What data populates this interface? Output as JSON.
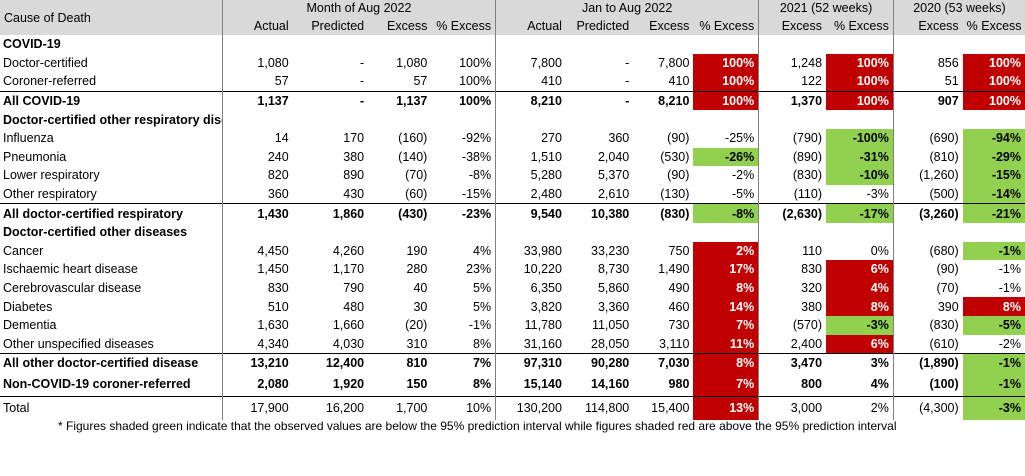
{
  "header": {
    "cause_label": "Cause of Death",
    "groups": [
      "Month of Aug 2022",
      "Jan to Aug 2022",
      "2021 (52 weeks)",
      "2020 (53 weeks)"
    ],
    "columns": [
      "Actual",
      "Predicted",
      "Excess",
      "% Excess",
      "Actual",
      "Predicted",
      "Excess",
      "% Excess",
      "Excess",
      "% Excess",
      "Excess",
      "% Excess"
    ]
  },
  "colors": {
    "red": "#c00000",
    "green": "#92d050",
    "header_bg": "#d9d9d9"
  },
  "rows": [
    {
      "kind": "section",
      "label": "COVID-19"
    },
    {
      "kind": "data",
      "label": "Doctor-certified",
      "cells": [
        "1,080",
        "-",
        "1,080",
        "100%",
        "7,800",
        "-",
        "7,800",
        "100%",
        "1,248",
        "100%",
        "856",
        "100%"
      ],
      "shade": {
        "7": "red",
        "9": "red",
        "11": "red"
      }
    },
    {
      "kind": "data",
      "label": "Coroner-referred",
      "cells": [
        "57",
        "-",
        "57",
        "100%",
        "410",
        "-",
        "410",
        "100%",
        "122",
        "100%",
        "51",
        "100%"
      ],
      "shade": {
        "7": "red",
        "9": "red",
        "11": "red"
      }
    },
    {
      "kind": "subtotal",
      "label": "All COVID-19",
      "cells": [
        "1,137",
        "-",
        "1,137",
        "100%",
        "8,210",
        "-",
        "8,210",
        "100%",
        "1,370",
        "100%",
        "907",
        "100%"
      ],
      "shade": {
        "7": "red",
        "9": "red",
        "11": "red"
      }
    },
    {
      "kind": "section",
      "label": "Doctor-certified other respiratory disease"
    },
    {
      "kind": "data",
      "label": "Influenza",
      "cells": [
        "14",
        "170",
        "(160)",
        "-92%",
        "270",
        "360",
        "(90)",
        "-25%",
        "(790)",
        "-100%",
        "(690)",
        "-94%"
      ],
      "shade": {
        "9": "green",
        "11": "green"
      }
    },
    {
      "kind": "data",
      "label": "Pneumonia",
      "cells": [
        "240",
        "380",
        "(140)",
        "-38%",
        "1,510",
        "2,040",
        "(530)",
        "-26%",
        "(890)",
        "-31%",
        "(810)",
        "-29%"
      ],
      "shade": {
        "7": "green",
        "9": "green",
        "11": "green"
      }
    },
    {
      "kind": "data",
      "label": "Lower respiratory",
      "cells": [
        "820",
        "890",
        "(70)",
        "-8%",
        "5,280",
        "5,370",
        "(90)",
        "-2%",
        "(830)",
        "-10%",
        "(1,260)",
        "-15%"
      ],
      "shade": {
        "9": "green",
        "11": "green"
      }
    },
    {
      "kind": "data",
      "label": "Other respiratory",
      "cells": [
        "360",
        "430",
        "(60)",
        "-15%",
        "2,480",
        "2,610",
        "(130)",
        "-5%",
        "(110)",
        "-3%",
        "(500)",
        "-14%"
      ],
      "shade": {
        "11": "green"
      }
    },
    {
      "kind": "subtotal",
      "label": "All doctor-certified respiratory",
      "cells": [
        "1,430",
        "1,860",
        "(430)",
        "-23%",
        "9,540",
        "10,380",
        "(830)",
        "-8%",
        "(2,630)",
        "-17%",
        "(3,260)",
        "-21%"
      ],
      "shade": {
        "7": "green",
        "9": "green",
        "11": "green"
      }
    },
    {
      "kind": "section",
      "label": "Doctor-certified other diseases"
    },
    {
      "kind": "data",
      "label": "Cancer",
      "cells": [
        "4,450",
        "4,260",
        "190",
        "4%",
        "33,980",
        "33,230",
        "750",
        "2%",
        "110",
        "0%",
        "(680)",
        "-1%"
      ],
      "shade": {
        "7": "red",
        "11": "green"
      }
    },
    {
      "kind": "data",
      "label": "Ischaemic heart disease",
      "cells": [
        "1,450",
        "1,170",
        "280",
        "23%",
        "10,220",
        "8,730",
        "1,490",
        "17%",
        "830",
        "6%",
        "(90)",
        "-1%"
      ],
      "shade": {
        "7": "red",
        "9": "red"
      }
    },
    {
      "kind": "data",
      "label": "Cerebrovascular disease",
      "cells": [
        "830",
        "790",
        "40",
        "5%",
        "6,350",
        "5,860",
        "490",
        "8%",
        "320",
        "4%",
        "(70)",
        "-1%"
      ],
      "shade": {
        "7": "red",
        "9": "red"
      }
    },
    {
      "kind": "data",
      "label": "Diabetes",
      "cells": [
        "510",
        "480",
        "30",
        "5%",
        "3,820",
        "3,360",
        "460",
        "14%",
        "380",
        "8%",
        "390",
        "8%"
      ],
      "shade": {
        "7": "red",
        "9": "red",
        "11": "red"
      }
    },
    {
      "kind": "data",
      "label": "Dementia",
      "cells": [
        "1,630",
        "1,660",
        "(20)",
        "-1%",
        "11,780",
        "11,050",
        "730",
        "7%",
        "(570)",
        "-3%",
        "(830)",
        "-5%"
      ],
      "shade": {
        "7": "red",
        "9": "green",
        "11": "green"
      }
    },
    {
      "kind": "data",
      "label": "Other unspecified diseases",
      "cells": [
        "4,340",
        "4,030",
        "310",
        "8%",
        "31,160",
        "28,050",
        "3,110",
        "11%",
        "2,400",
        "6%",
        "(610)",
        "-2%"
      ],
      "shade": {
        "7": "red",
        "9": "red"
      }
    },
    {
      "kind": "subtotal",
      "label": "All other doctor-certified disease",
      "cells": [
        "13,210",
        "12,400",
        "810",
        "7%",
        "97,310",
        "90,280",
        "7,030",
        "8%",
        "3,470",
        "3%",
        "(1,890)",
        "-1%"
      ],
      "shade": {
        "7": "red",
        "11": "green"
      }
    },
    {
      "kind": "section-data",
      "label": "Non-COVID-19 coroner-referred",
      "cells": [
        "2,080",
        "1,920",
        "150",
        "8%",
        "15,140",
        "14,160",
        "980",
        "7%",
        "800",
        "4%",
        "(100)",
        "-1%"
      ],
      "shade": {
        "7": "red",
        "11": "green"
      }
    },
    {
      "kind": "total",
      "label": "Total",
      "cells": [
        "17,900",
        "16,200",
        "1,700",
        "10%",
        "130,200",
        "114,800",
        "15,400",
        "13%",
        "3,000",
        "2%",
        "(4,300)",
        "-3%"
      ],
      "shade": {
        "7": "red",
        "11": "green"
      }
    }
  ],
  "footnote": "* Figures shaded green indicate that the observed values are below the 95% prediction interval while figures shaded red are above the 95% prediction interval"
}
